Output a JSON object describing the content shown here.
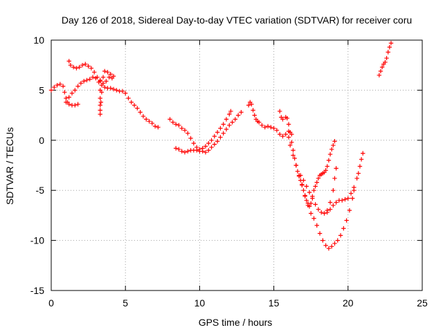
{
  "chart_data": {
    "type": "scatter",
    "title": "Day 126 of 2018, Sidereal Day-to-day VTEC variation (SDTVAR) for receiver coru",
    "xlabel": "GPS time / hours",
    "ylabel": "SDTVAR / TECUs",
    "xlim": [
      0,
      25
    ],
    "ylim": [
      -15,
      10
    ],
    "xticks": [
      0,
      5,
      10,
      15,
      20,
      25
    ],
    "yticks": [
      -15,
      -10,
      -5,
      0,
      5,
      10
    ],
    "xtick_labels": [
      "0",
      "5",
      "10",
      "15",
      "20",
      "25"
    ],
    "ytick_labels": [
      "-15",
      "-10",
      "-5",
      "0",
      "5",
      "10"
    ],
    "grid": true,
    "marker": "+",
    "color": "#ff0000",
    "series": [
      {
        "name": "track-1",
        "points": [
          [
            0.0,
            5.0
          ],
          [
            0.2,
            5.3
          ],
          [
            0.4,
            5.5
          ],
          [
            0.6,
            5.6
          ],
          [
            0.8,
            5.4
          ],
          [
            0.9,
            4.8
          ],
          [
            1.0,
            4.2
          ],
          [
            1.1,
            3.8
          ],
          [
            1.2,
            3.6
          ],
          [
            1.4,
            3.5
          ],
          [
            1.6,
            3.5
          ],
          [
            1.8,
            3.6
          ]
        ]
      },
      {
        "name": "track-2",
        "points": [
          [
            1.2,
            7.9
          ],
          [
            1.3,
            7.5
          ],
          [
            1.5,
            7.3
          ],
          [
            1.7,
            7.2
          ],
          [
            1.9,
            7.3
          ],
          [
            2.1,
            7.5
          ],
          [
            2.3,
            7.6
          ],
          [
            2.5,
            7.4
          ],
          [
            2.7,
            7.2
          ],
          [
            2.9,
            6.8
          ],
          [
            3.1,
            6.3
          ],
          [
            3.3,
            5.9
          ],
          [
            3.5,
            5.7
          ],
          [
            3.7,
            5.9
          ],
          [
            3.9,
            6.3
          ],
          [
            4.1,
            6.2
          ]
        ]
      },
      {
        "name": "track-3",
        "points": [
          [
            1.0,
            3.8
          ],
          [
            1.2,
            4.3
          ],
          [
            1.4,
            4.7
          ],
          [
            1.6,
            5.0
          ],
          [
            1.8,
            5.4
          ],
          [
            2.0,
            5.7
          ],
          [
            2.2,
            5.9
          ],
          [
            2.4,
            6.0
          ],
          [
            2.6,
            6.1
          ],
          [
            2.8,
            6.3
          ],
          [
            3.0,
            6.2
          ],
          [
            3.2,
            5.8
          ],
          [
            3.4,
            5.5
          ],
          [
            3.6,
            5.3
          ],
          [
            3.8,
            5.2
          ],
          [
            4.0,
            5.2
          ],
          [
            4.2,
            5.1
          ],
          [
            4.4,
            5.0
          ],
          [
            4.6,
            4.9
          ],
          [
            4.8,
            4.9
          ],
          [
            5.0,
            4.7
          ],
          [
            5.2,
            4.2
          ],
          [
            5.4,
            3.8
          ],
          [
            5.6,
            3.5
          ],
          [
            5.8,
            3.2
          ],
          [
            6.0,
            2.8
          ],
          [
            6.2,
            2.4
          ],
          [
            6.4,
            2.1
          ],
          [
            6.6,
            1.9
          ],
          [
            6.8,
            1.7
          ],
          [
            7.0,
            1.4
          ],
          [
            7.2,
            1.3
          ]
        ]
      },
      {
        "name": "track-4",
        "points": [
          [
            3.3,
            6.0
          ],
          [
            3.3,
            5.0
          ],
          [
            3.3,
            4.2
          ],
          [
            3.3,
            3.5
          ],
          [
            3.3,
            3.0
          ],
          [
            3.3,
            2.6
          ],
          [
            3.35,
            3.8
          ],
          [
            3.4,
            4.8
          ],
          [
            3.5,
            6.3
          ],
          [
            3.6,
            6.9
          ],
          [
            3.8,
            6.8
          ],
          [
            4.0,
            6.6
          ],
          [
            4.2,
            6.4
          ]
        ]
      },
      {
        "name": "track-5",
        "points": [
          [
            8.0,
            2.1
          ],
          [
            8.2,
            1.8
          ],
          [
            8.4,
            1.6
          ],
          [
            8.6,
            1.5
          ],
          [
            8.8,
            1.2
          ],
          [
            9.0,
            1.0
          ],
          [
            9.2,
            0.7
          ],
          [
            9.4,
            0.2
          ],
          [
            9.6,
            -0.3
          ],
          [
            9.8,
            -0.7
          ],
          [
            10.0,
            -0.9
          ],
          [
            10.2,
            -0.8
          ],
          [
            10.4,
            -0.6
          ],
          [
            10.6,
            -0.3
          ],
          [
            10.8,
            0.0
          ],
          [
            11.0,
            0.4
          ],
          [
            11.2,
            0.8
          ],
          [
            11.4,
            1.2
          ],
          [
            11.6,
            1.6
          ],
          [
            11.8,
            2.1
          ],
          [
            12.0,
            2.6
          ],
          [
            12.1,
            2.9
          ]
        ]
      },
      {
        "name": "track-6",
        "points": [
          [
            8.4,
            -0.8
          ],
          [
            8.6,
            -0.9
          ],
          [
            8.8,
            -1.1
          ],
          [
            9.0,
            -1.2
          ],
          [
            9.2,
            -1.1
          ],
          [
            9.4,
            -1.0
          ],
          [
            9.6,
            -1.0
          ],
          [
            9.8,
            -1.0
          ],
          [
            10.0,
            -1.1
          ],
          [
            10.2,
            -1.1
          ],
          [
            10.4,
            -1.2
          ],
          [
            10.6,
            -1.0
          ],
          [
            10.8,
            -0.7
          ],
          [
            11.0,
            -0.4
          ],
          [
            11.2,
            -0.1
          ],
          [
            11.4,
            0.3
          ],
          [
            11.6,
            0.7
          ],
          [
            11.8,
            1.1
          ],
          [
            12.0,
            1.5
          ],
          [
            12.2,
            1.8
          ],
          [
            12.4,
            2.1
          ],
          [
            12.6,
            2.5
          ],
          [
            12.8,
            2.8
          ]
        ]
      },
      {
        "name": "track-7",
        "points": [
          [
            13.3,
            3.5
          ],
          [
            13.4,
            3.8
          ],
          [
            13.5,
            3.6
          ],
          [
            13.6,
            3.0
          ],
          [
            13.7,
            2.5
          ],
          [
            13.8,
            2.1
          ],
          [
            13.9,
            1.9
          ],
          [
            14.0,
            1.8
          ],
          [
            14.2,
            1.5
          ],
          [
            14.4,
            1.3
          ],
          [
            14.6,
            1.4
          ],
          [
            14.8,
            1.3
          ],
          [
            15.0,
            1.2
          ],
          [
            15.2,
            1.0
          ],
          [
            15.4,
            0.6
          ],
          [
            15.6,
            0.4
          ],
          [
            15.8,
            0.6
          ],
          [
            16.0,
            0.9
          ],
          [
            16.2,
            0.6
          ]
        ]
      },
      {
        "name": "track-8",
        "points": [
          [
            15.4,
            2.9
          ],
          [
            15.5,
            2.3
          ],
          [
            15.6,
            2.1
          ],
          [
            15.8,
            2.3
          ],
          [
            15.9,
            2.2
          ],
          [
            16.0,
            1.6
          ],
          [
            16.1,
            0.8
          ],
          [
            16.2,
            -0.2
          ],
          [
            16.3,
            -1.0
          ],
          [
            16.4,
            -1.8
          ],
          [
            16.5,
            -2.5
          ],
          [
            16.6,
            -3.1
          ],
          [
            16.7,
            -3.6
          ],
          [
            16.8,
            -4.0
          ],
          [
            16.9,
            -4.4
          ],
          [
            17.0,
            -5.0
          ],
          [
            17.1,
            -5.6
          ],
          [
            17.2,
            -6.0
          ],
          [
            17.3,
            -6.3
          ],
          [
            17.4,
            -6.6
          ],
          [
            17.5,
            -6.3
          ],
          [
            17.6,
            -5.6
          ],
          [
            17.7,
            -5.0
          ],
          [
            17.8,
            -4.6
          ],
          [
            17.9,
            -4.2
          ],
          [
            18.0,
            -3.8
          ],
          [
            18.1,
            -3.5
          ],
          [
            18.2,
            -3.4
          ],
          [
            18.3,
            -3.3
          ],
          [
            18.4,
            -3.2
          ],
          [
            18.5,
            -3.0
          ],
          [
            18.6,
            -2.6
          ],
          [
            18.7,
            -2.0
          ],
          [
            18.8,
            -1.4
          ],
          [
            18.9,
            -0.9
          ],
          [
            19.0,
            -0.5
          ],
          [
            19.1,
            -0.1
          ]
        ]
      },
      {
        "name": "track-9",
        "points": [
          [
            16.0,
            0.3
          ],
          [
            16.1,
            -0.5
          ],
          [
            16.3,
            -1.5
          ],
          [
            16.5,
            -2.5
          ],
          [
            16.7,
            -3.5
          ],
          [
            16.9,
            -4.5
          ],
          [
            17.1,
            -5.5
          ],
          [
            17.3,
            -6.5
          ],
          [
            17.5,
            -7.3
          ],
          [
            17.7,
            -7.8
          ],
          [
            17.9,
            -8.5
          ],
          [
            18.1,
            -9.3
          ],
          [
            18.3,
            -10.0
          ],
          [
            18.5,
            -10.5
          ],
          [
            18.7,
            -10.8
          ],
          [
            18.9,
            -10.6
          ],
          [
            19.1,
            -10.3
          ],
          [
            19.3,
            -10.0
          ],
          [
            19.5,
            -9.5
          ],
          [
            19.7,
            -8.8
          ],
          [
            19.9,
            -8.0
          ],
          [
            20.1,
            -7.0
          ],
          [
            20.3,
            -5.8
          ],
          [
            20.4,
            -5.0
          ]
        ]
      },
      {
        "name": "track-10",
        "points": [
          [
            16.8,
            -3.5
          ],
          [
            17.0,
            -4.0
          ],
          [
            17.2,
            -4.6
          ],
          [
            17.4,
            -5.2
          ],
          [
            17.6,
            -5.8
          ],
          [
            17.8,
            -6.4
          ],
          [
            18.0,
            -6.9
          ],
          [
            18.2,
            -7.2
          ],
          [
            18.4,
            -7.3
          ],
          [
            18.6,
            -7.0
          ],
          [
            18.8,
            -6.2
          ],
          [
            19.0,
            -5.0
          ],
          [
            19.1,
            -3.8
          ],
          [
            19.2,
            -2.8
          ]
        ]
      },
      {
        "name": "track-11",
        "points": [
          [
            18.6,
            -7.2
          ],
          [
            18.8,
            -6.9
          ],
          [
            19.0,
            -6.5
          ],
          [
            19.2,
            -6.2
          ],
          [
            19.4,
            -6.0
          ],
          [
            19.6,
            -6.0
          ],
          [
            19.8,
            -5.9
          ],
          [
            20.0,
            -5.8
          ],
          [
            20.2,
            -5.3
          ],
          [
            20.4,
            -4.7
          ],
          [
            20.6,
            -3.8
          ],
          [
            20.7,
            -3.3
          ],
          [
            20.8,
            -2.6
          ],
          [
            20.9,
            -1.9
          ],
          [
            21.0,
            -1.3
          ]
        ]
      },
      {
        "name": "track-12",
        "points": [
          [
            22.1,
            6.5
          ],
          [
            22.2,
            6.9
          ],
          [
            22.3,
            7.3
          ],
          [
            22.4,
            7.6
          ],
          [
            22.5,
            7.8
          ],
          [
            22.6,
            8.2
          ],
          [
            22.7,
            8.8
          ],
          [
            22.8,
            9.3
          ],
          [
            22.9,
            9.7
          ]
        ]
      }
    ]
  }
}
